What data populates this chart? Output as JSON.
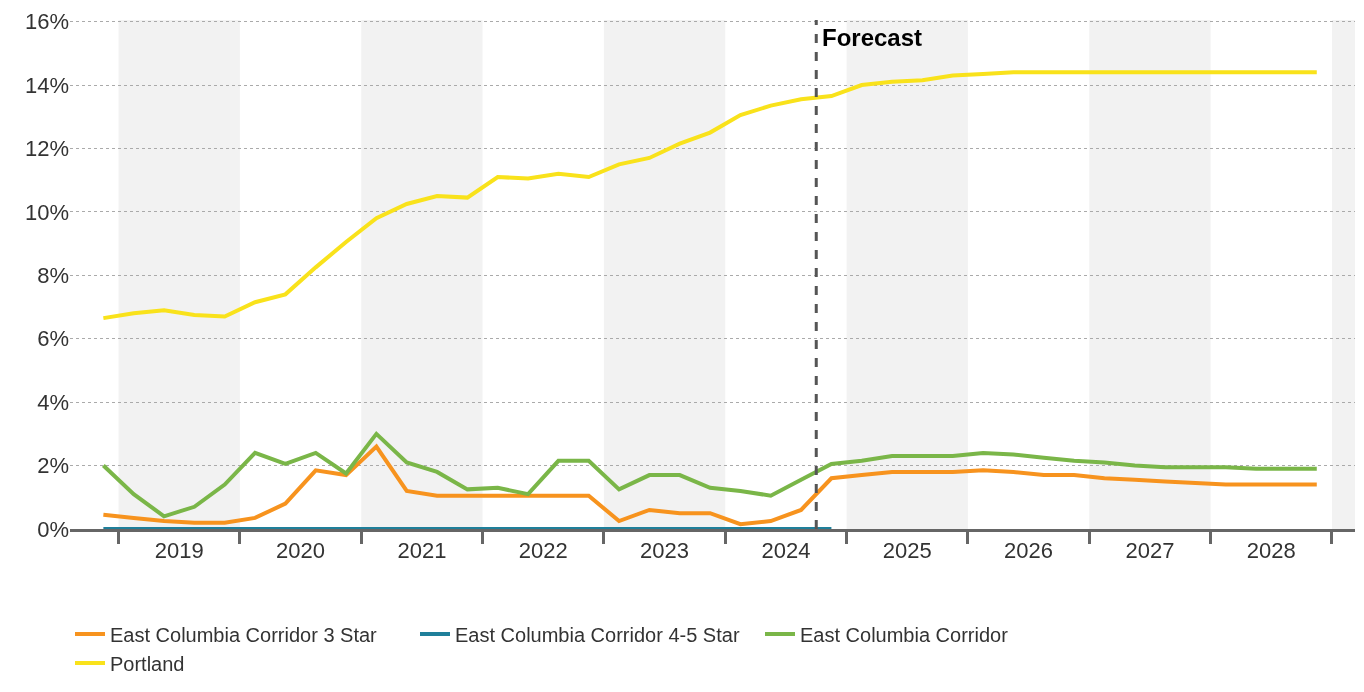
{
  "chart_data": {
    "type": "line",
    "x": [
      2018.875,
      2019.125,
      2019.375,
      2019.625,
      2019.875,
      2020.125,
      2020.375,
      2020.625,
      2020.875,
      2021.125,
      2021.375,
      2021.625,
      2021.875,
      2022.125,
      2022.375,
      2022.625,
      2022.875,
      2023.125,
      2023.375,
      2023.625,
      2023.875,
      2024.125,
      2024.375,
      2024.625,
      2024.875,
      2025.125,
      2025.375,
      2025.625,
      2025.875,
      2026.125,
      2026.375,
      2026.625,
      2026.875,
      2027.125,
      2027.375,
      2027.625,
      2027.875,
      2028.125,
      2028.375,
      2028.625,
      2028.875
    ],
    "series": [
      {
        "name": "East Columbia Corridor 3 Star",
        "color": "#f7931e",
        "values": [
          0.45,
          0.35,
          0.25,
          0.2,
          0.2,
          0.35,
          0.8,
          1.85,
          1.7,
          2.6,
          1.2,
          1.05,
          1.05,
          1.05,
          1.05,
          1.05,
          1.05,
          0.25,
          0.6,
          0.5,
          0.5,
          0.15,
          0.25,
          0.6,
          1.6,
          1.7,
          1.8,
          1.8,
          1.8,
          1.85,
          1.8,
          1.7,
          1.7,
          1.6,
          1.55,
          1.5,
          1.45,
          1.4,
          1.4,
          1.4,
          1.4
        ]
      },
      {
        "name": "East Columbia Corridor 4-5 Star",
        "color": "#1f7f9a",
        "values": [
          0,
          0,
          0,
          0,
          0,
          0,
          0,
          0,
          0,
          0,
          0,
          0,
          0,
          0,
          0,
          0,
          0,
          0,
          0,
          0,
          0,
          0,
          0,
          0,
          0,
          null,
          null,
          null,
          null,
          null,
          null,
          null,
          null,
          null,
          null,
          null,
          null,
          null,
          null,
          null,
          null
        ]
      },
      {
        "name": "East Columbia Corridor",
        "color": "#7ab648",
        "values": [
          2.0,
          1.1,
          0.4,
          0.7,
          1.4,
          2.4,
          2.05,
          2.4,
          1.75,
          3.0,
          2.1,
          1.8,
          1.25,
          1.3,
          1.1,
          2.15,
          2.15,
          1.25,
          1.7,
          1.7,
          1.3,
          1.2,
          1.05,
          1.55,
          2.05,
          2.15,
          2.3,
          2.3,
          2.3,
          2.4,
          2.35,
          2.25,
          2.15,
          2.1,
          2.0,
          1.95,
          1.95,
          1.95,
          1.9,
          1.9,
          1.9
        ]
      },
      {
        "name": "Portland",
        "color": "#f9e21b",
        "values": [
          6.65,
          6.8,
          6.9,
          6.75,
          6.7,
          7.15,
          7.4,
          8.25,
          9.05,
          9.8,
          10.25,
          10.5,
          10.45,
          11.1,
          11.05,
          11.2,
          11.1,
          11.5,
          11.7,
          12.15,
          12.5,
          13.05,
          13.35,
          13.55,
          13.65,
          14.0,
          14.1,
          14.15,
          14.3,
          14.35,
          14.4,
          14.4,
          14.4,
          14.4,
          14.4,
          14.4,
          14.4,
          14.4,
          14.4,
          14.4,
          14.4
        ]
      }
    ],
    "xlim": [
      2018.6,
      2029.19
    ],
    "xticks": [
      {
        "value": 2019,
        "label": null
      },
      {
        "value": 2019.5,
        "label": "2019"
      },
      {
        "value": 2020,
        "label": null
      },
      {
        "value": 2020.5,
        "label": "2020"
      },
      {
        "value": 2021,
        "label": null
      },
      {
        "value": 2021.5,
        "label": "2021"
      },
      {
        "value": 2022,
        "label": null
      },
      {
        "value": 2022.5,
        "label": "2022"
      },
      {
        "value": 2023,
        "label": null
      },
      {
        "value": 2023.5,
        "label": "2023"
      },
      {
        "value": 2024,
        "label": null
      },
      {
        "value": 2024.5,
        "label": "2024"
      },
      {
        "value": 2025,
        "label": null
      },
      {
        "value": 2025.5,
        "label": "2025"
      },
      {
        "value": 2026,
        "label": null
      },
      {
        "value": 2026.5,
        "label": "2026"
      },
      {
        "value": 2027,
        "label": null
      },
      {
        "value": 2027.5,
        "label": "2027"
      },
      {
        "value": 2028,
        "label": null
      },
      {
        "value": 2028.5,
        "label": "2028"
      },
      {
        "value": 2029,
        "label": null
      }
    ],
    "ylim": [
      0,
      16.05
    ],
    "yticks": [
      {
        "value": 0,
        "label": "0%"
      },
      {
        "value": 2,
        "label": "2%"
      },
      {
        "value": 4,
        "label": "4%"
      },
      {
        "value": 6,
        "label": "6%"
      },
      {
        "value": 8,
        "label": "8%"
      },
      {
        "value": 10,
        "label": "10%"
      },
      {
        "value": 12,
        "label": "12%"
      },
      {
        "value": 14,
        "label": "14%"
      },
      {
        "value": 16,
        "label": "16%"
      }
    ],
    "grid": "y",
    "legend": "bottom",
    "marker": "none",
    "line_style": "solid",
    "ref_lines": [
      {
        "axis": "x",
        "value": 2024.75,
        "label": "Forecast",
        "color": "#555555",
        "line_style": "dashed"
      }
    ],
    "bands": [
      {
        "axis": "x",
        "from": 2019,
        "to": 2020,
        "color": "#f2f2f2"
      },
      {
        "axis": "x",
        "from": 2021,
        "to": 2022,
        "color": "#f2f2f2"
      },
      {
        "axis": "x",
        "from": 2023,
        "to": 2024,
        "color": "#f2f2f2"
      },
      {
        "axis": "x",
        "from": 2025,
        "to": 2026,
        "color": "#f2f2f2"
      },
      {
        "axis": "x",
        "from": 2027,
        "to": 2028,
        "color": "#f2f2f2"
      },
      {
        "axis": "x",
        "from": 2029,
        "to": 2029.19,
        "color": "#f2f2f2"
      }
    ]
  }
}
